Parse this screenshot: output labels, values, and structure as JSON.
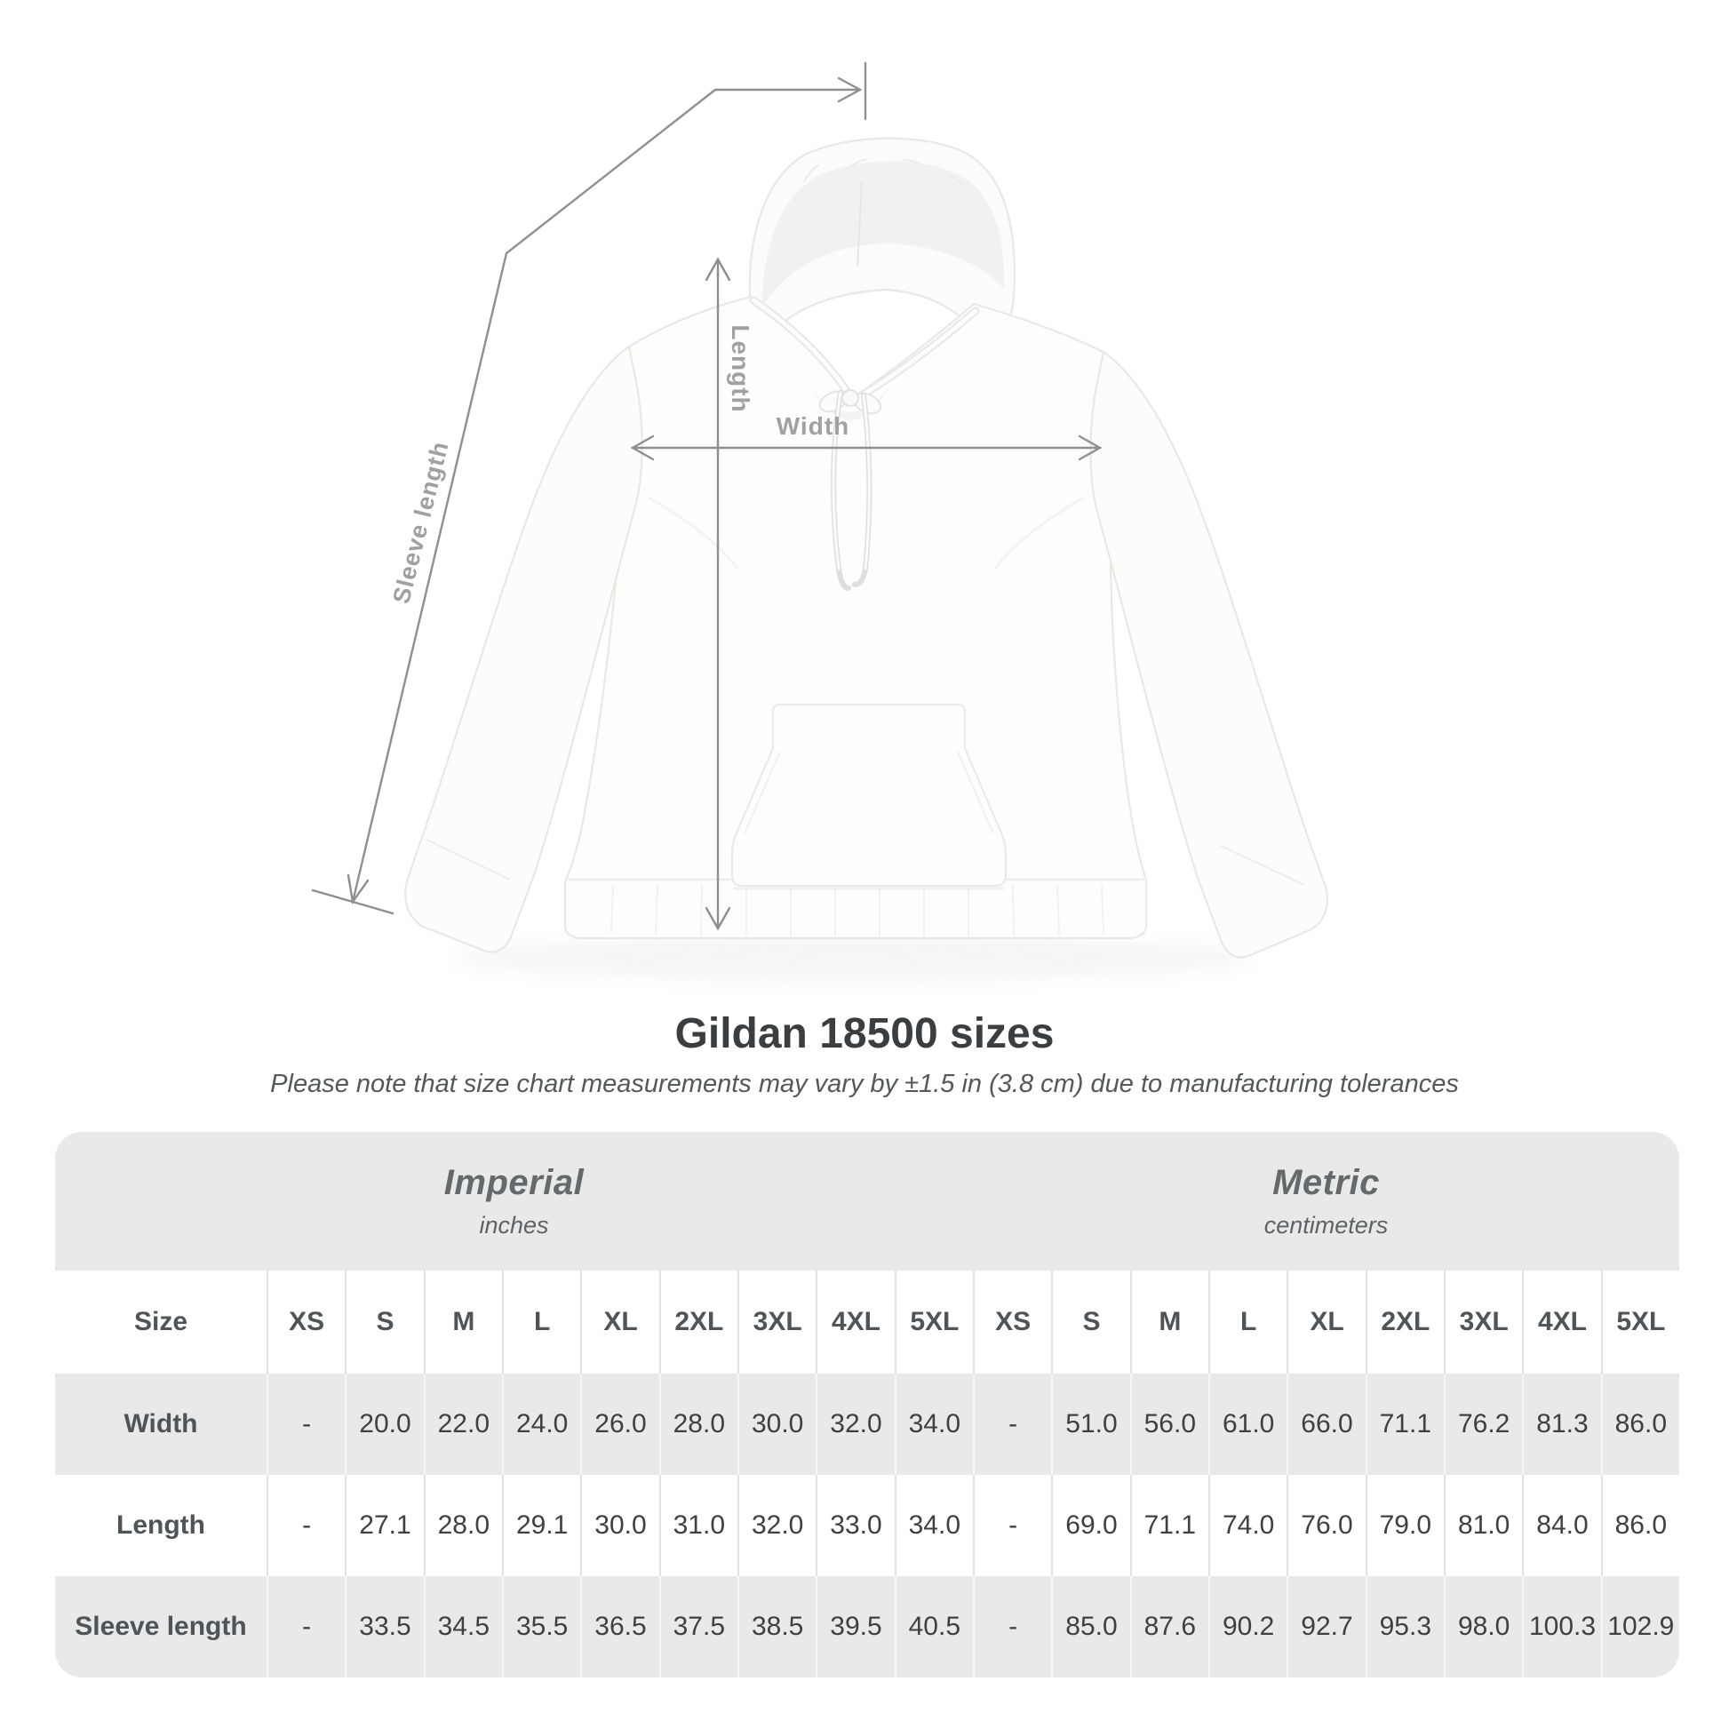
{
  "page": {
    "background": "#ffffff"
  },
  "diagram": {
    "sleeve_length_label": "Sleeve length",
    "length_label": "Length",
    "width_label": "Width",
    "arrow_color": "#8f8f8f",
    "label_color": "#a0a0a0"
  },
  "heading": {
    "title": "Gildan 18500 sizes",
    "subtitle": "Please note that size chart measurements may vary by ±1.5 in (3.8 cm) due to manufacturing tolerances"
  },
  "table": {
    "groups": [
      {
        "label": "Imperial",
        "sublabel": "inches"
      },
      {
        "label": "Metric",
        "sublabel": "centimeters"
      }
    ],
    "size_header": "Size",
    "columns": [
      "XS",
      "S",
      "M",
      "L",
      "XL",
      "2XL",
      "3XL",
      "4XL",
      "5XL",
      "XS",
      "S",
      "M",
      "L",
      "XL",
      "2XL",
      "3XL",
      "4XL",
      "5XL"
    ],
    "rows": [
      {
        "label": "Width",
        "values": [
          "-",
          "20.0",
          "22.0",
          "24.0",
          "26.0",
          "28.0",
          "30.0",
          "32.0",
          "34.0",
          "-",
          "51.0",
          "56.0",
          "61.0",
          "66.0",
          "71.1",
          "76.2",
          "81.3",
          "86.0"
        ]
      },
      {
        "label": "Length",
        "values": [
          "-",
          "27.1",
          "28.0",
          "29.1",
          "30.0",
          "31.0",
          "32.0",
          "33.0",
          "34.0",
          "-",
          "69.0",
          "71.1",
          "74.0",
          "76.0",
          "79.0",
          "81.0",
          "84.0",
          "86.0"
        ]
      },
      {
        "label": "Sleeve length",
        "values": [
          "-",
          "33.5",
          "34.5",
          "35.5",
          "36.5",
          "37.5",
          "38.5",
          "39.5",
          "40.5",
          "-",
          "85.0",
          "87.6",
          "90.2",
          "92.7",
          "95.3",
          "98.0",
          "100.3",
          "102.9"
        ]
      }
    ],
    "row_gray": "#e9e9e9"
  },
  "chart_data": {
    "type": "table",
    "title": "Gildan 18500 sizes",
    "note": "Please note that size chart measurements may vary by ±1.5 in (3.8 cm) due to manufacturing tolerances",
    "column_groups": [
      "Imperial (inches)",
      "Metric (centimeters)"
    ],
    "columns": [
      "XS",
      "S",
      "M",
      "L",
      "XL",
      "2XL",
      "3XL",
      "4XL",
      "5XL",
      "XS",
      "S",
      "M",
      "L",
      "XL",
      "2XL",
      "3XL",
      "4XL",
      "5XL"
    ],
    "rows": [
      {
        "label": "Width",
        "values": [
          null,
          20.0,
          22.0,
          24.0,
          26.0,
          28.0,
          30.0,
          32.0,
          34.0,
          null,
          51.0,
          56.0,
          61.0,
          66.0,
          71.1,
          76.2,
          81.3,
          86.0
        ]
      },
      {
        "label": "Length",
        "values": [
          null,
          27.1,
          28.0,
          29.1,
          30.0,
          31.0,
          32.0,
          33.0,
          34.0,
          null,
          69.0,
          71.1,
          74.0,
          76.0,
          79.0,
          81.0,
          84.0,
          86.0
        ]
      },
      {
        "label": "Sleeve length",
        "values": [
          null,
          33.5,
          34.5,
          35.5,
          36.5,
          37.5,
          38.5,
          39.5,
          40.5,
          null,
          85.0,
          87.6,
          90.2,
          92.7,
          95.3,
          98.0,
          100.3,
          102.9
        ]
      }
    ]
  }
}
